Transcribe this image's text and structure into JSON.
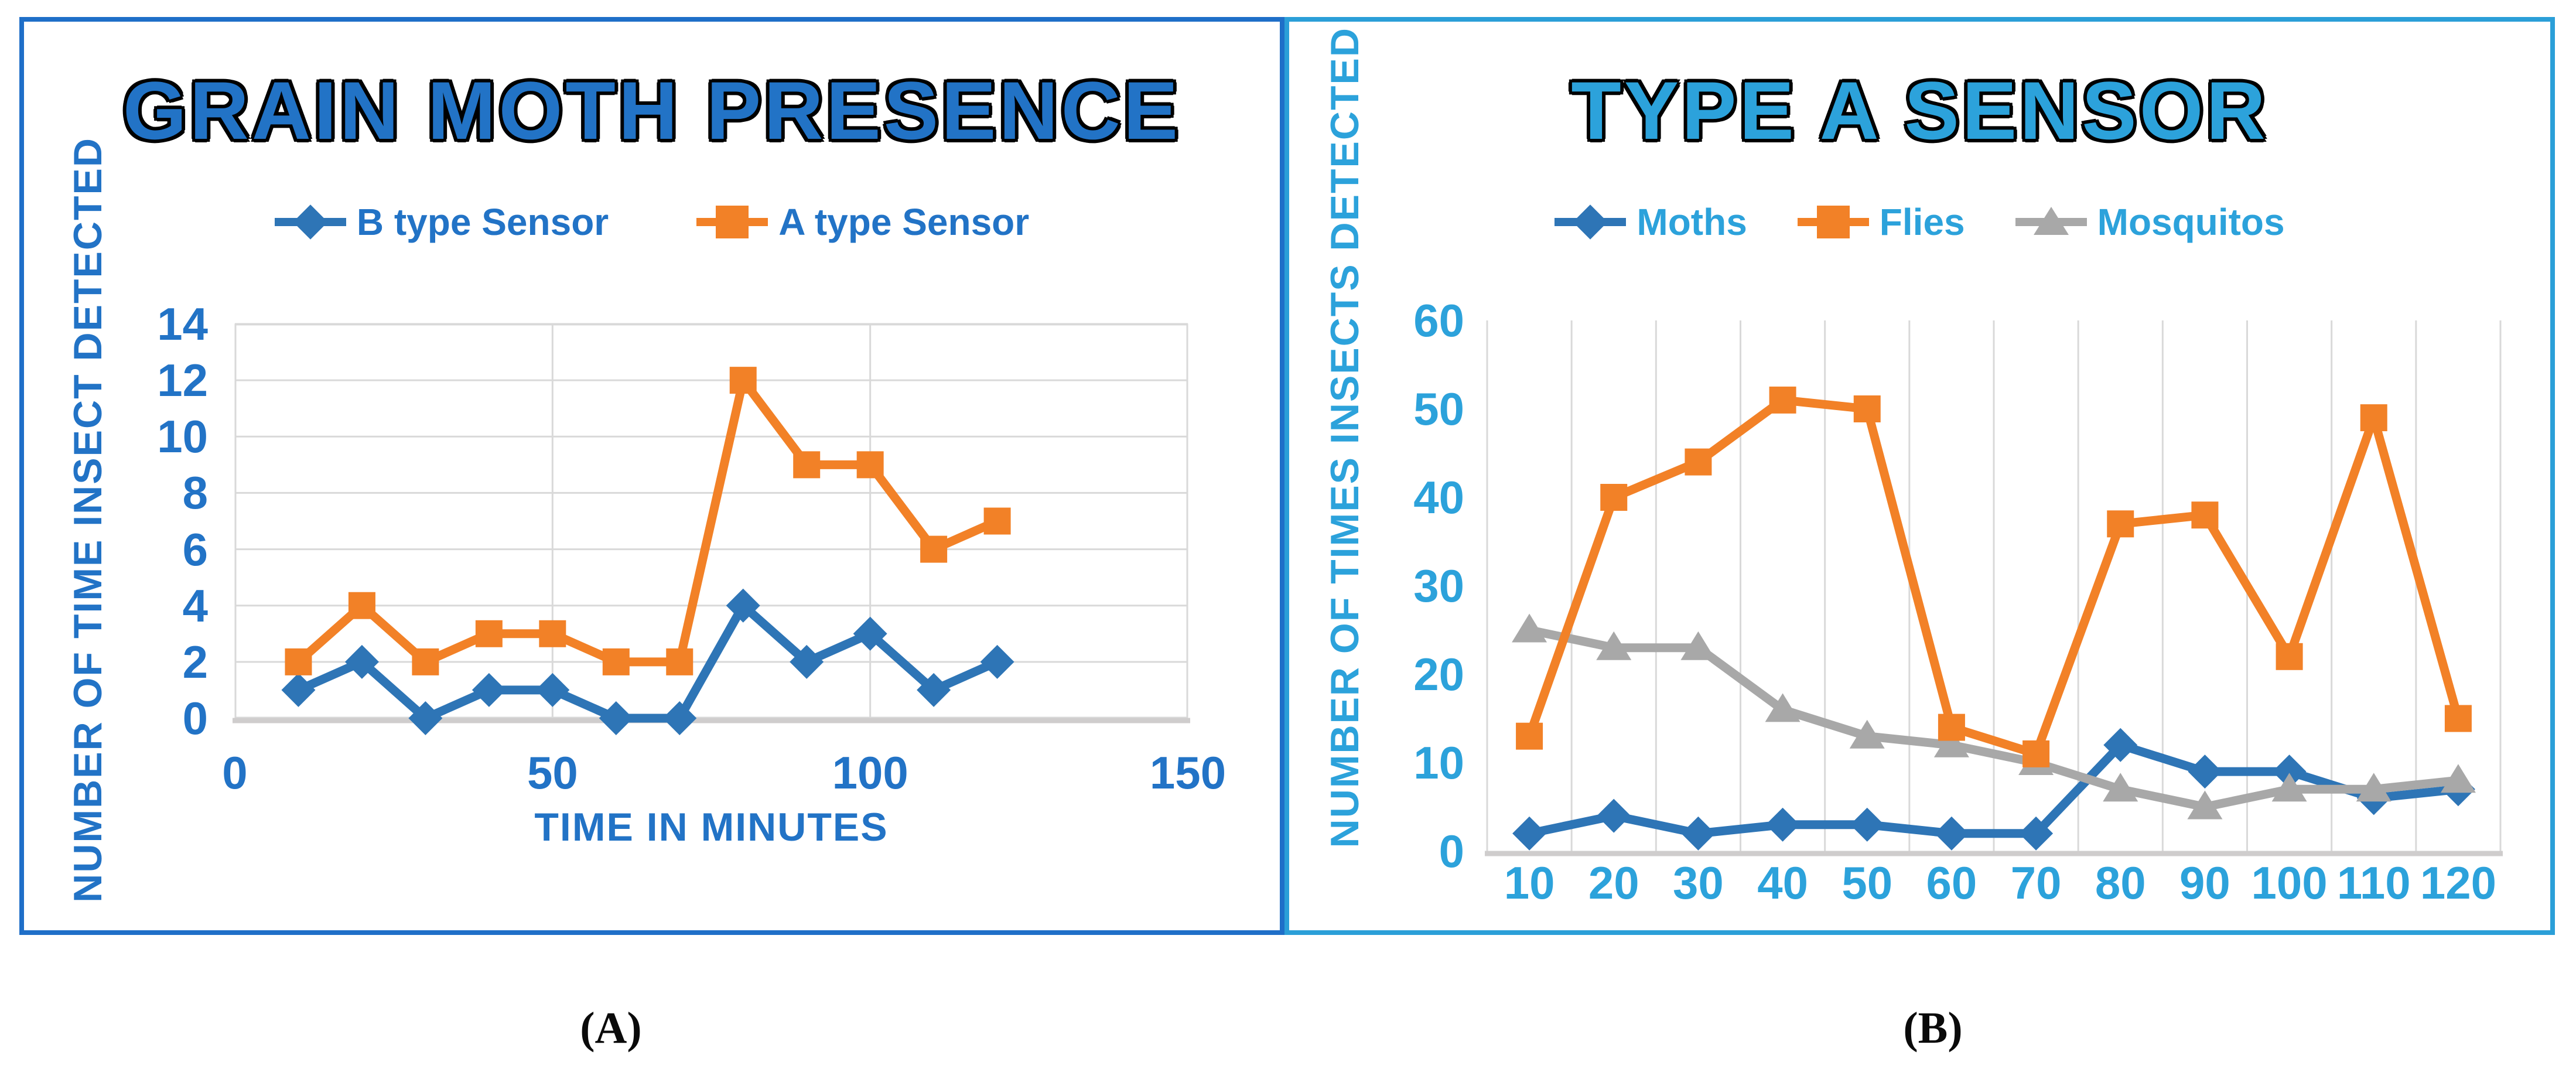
{
  "page": {
    "background": "#FFFFFF",
    "captions": {
      "a": "(A)",
      "b": "(B)"
    }
  },
  "chart_data": [
    {
      "id": "grain-moth-presence",
      "type": "line",
      "title": "GRAIN MOTH PRESENCE",
      "xlabel": "TIME IN MINUTES",
      "ylabel": "NUMBER OF TIME INSECT DETECTED",
      "x": [
        10,
        20,
        30,
        40,
        50,
        60,
        70,
        80,
        90,
        100,
        110,
        120
      ],
      "xlim": [
        0,
        150
      ],
      "xticks": [
        0,
        50,
        100,
        150
      ],
      "ylim": [
        0,
        14
      ],
      "yticks": [
        0,
        2,
        4,
        6,
        8,
        10,
        12,
        14
      ],
      "grid": {
        "horizontal": true,
        "vertical_at": [
          50,
          100
        ],
        "border": true
      },
      "grid_color": "#D9D9D9",
      "axis_line_color": "#CFCDCD",
      "legend_position": "top",
      "accent_color": "#2273C6",
      "border_color": "#1F6FC8",
      "series": [
        {
          "name": "B type Sensor",
          "color": "#2E75B6",
          "marker": "diamond",
          "values": [
            1,
            2,
            0,
            1,
            1,
            0,
            0,
            4,
            2,
            3,
            1,
            2
          ]
        },
        {
          "name": "A type Sensor",
          "color": "#F28127",
          "marker": "square",
          "values": [
            2,
            4,
            2,
            3,
            3,
            2,
            2,
            12,
            9,
            9,
            6,
            7
          ]
        }
      ]
    },
    {
      "id": "type-a-sensor",
      "type": "line",
      "title": "TYPE A SENSOR",
      "xlabel": "",
      "ylabel": "NUMBER OF TIMES INSECTS DETECTED",
      "categories": [
        "10",
        "20",
        "30",
        "40",
        "50",
        "60",
        "70",
        "80",
        "90",
        "100",
        "110",
        "120"
      ],
      "ylim": [
        0,
        60
      ],
      "yticks": [
        0,
        10,
        20,
        30,
        40,
        50,
        60
      ],
      "grid": {
        "horizontal": false,
        "vertical": "category-boundaries"
      },
      "grid_color": "#D9D9D9",
      "axis_line_color": "#CFCDCD",
      "legend_position": "top",
      "accent_color": "#2CA2DB",
      "border_color": "#2B9FD8",
      "series": [
        {
          "name": "Moths",
          "color": "#2E75B6",
          "marker": "diamond",
          "values": [
            2,
            4,
            2,
            3,
            3,
            2,
            2,
            12,
            9,
            9,
            6,
            7
          ]
        },
        {
          "name": "Flies",
          "color": "#F28127",
          "marker": "square",
          "values": [
            13,
            40,
            44,
            51,
            50,
            14,
            11,
            37,
            38,
            22,
            49,
            15
          ]
        },
        {
          "name": "Mosquitos",
          "color": "#A8A8A8",
          "marker": "triangle",
          "values": [
            25,
            23,
            23,
            16,
            13,
            12,
            10,
            7,
            5,
            7,
            7,
            8
          ]
        }
      ]
    }
  ]
}
